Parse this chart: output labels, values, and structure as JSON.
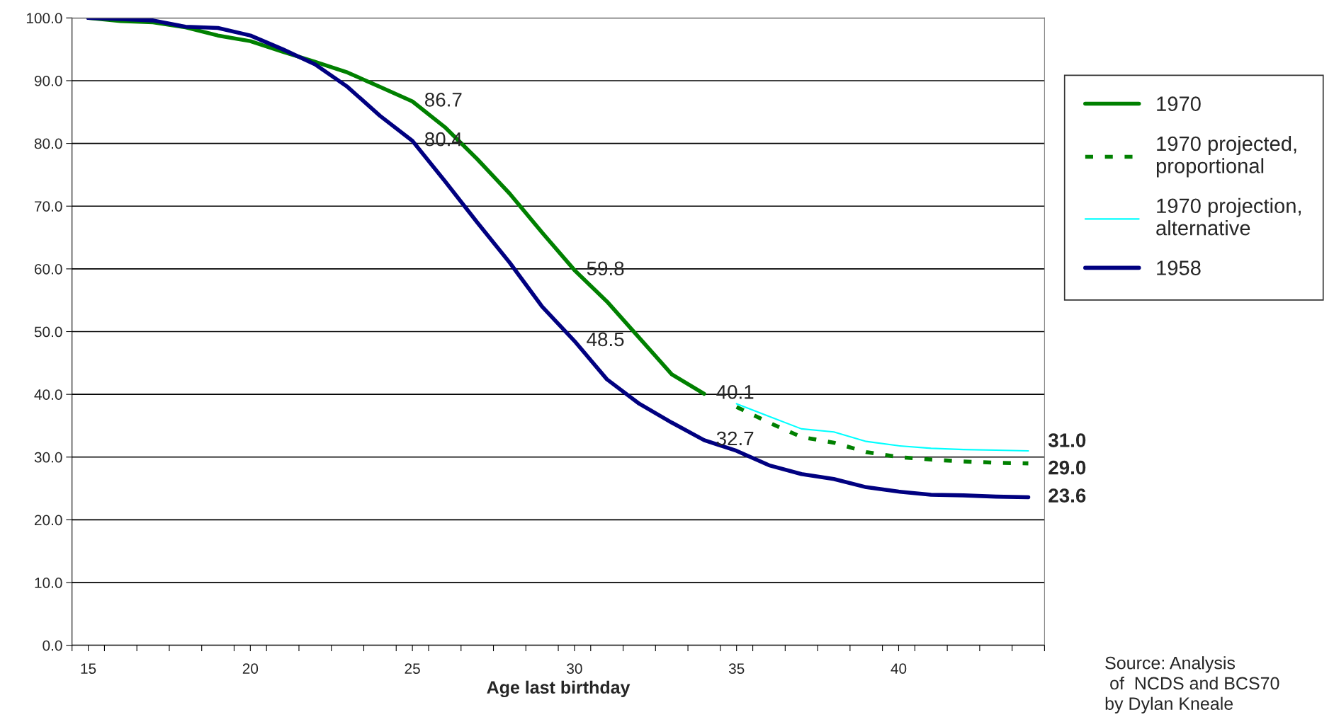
{
  "chart_data": {
    "type": "line",
    "xlabel": "Age last birthday",
    "xlim": [
      14.5,
      44.5
    ],
    "xticks": [
      {
        "value": 14.5,
        "label": null
      },
      {
        "value": 15.5,
        "label": null
      },
      {
        "value": 16.5,
        "label": null
      },
      {
        "value": 17.5,
        "label": null
      },
      {
        "value": 18.5,
        "label": null
      },
      {
        "value": 19.5,
        "label": null
      },
      {
        "value": 20.5,
        "label": null
      },
      {
        "value": 21.5,
        "label": null
      },
      {
        "value": 22.5,
        "label": null
      },
      {
        "value": 23.5,
        "label": null
      },
      {
        "value": 24.5,
        "label": null
      },
      {
        "value": 25.5,
        "label": null
      },
      {
        "value": 26.5,
        "label": null
      },
      {
        "value": 27.5,
        "label": null
      },
      {
        "value": 28.5,
        "label": null
      },
      {
        "value": 29.5,
        "label": null
      },
      {
        "value": 30.5,
        "label": null
      },
      {
        "value": 31.5,
        "label": null
      },
      {
        "value": 32.5,
        "label": null
      },
      {
        "value": 33.5,
        "label": null
      },
      {
        "value": 34.5,
        "label": null
      },
      {
        "value": 35.5,
        "label": null
      },
      {
        "value": 36.5,
        "label": null
      },
      {
        "value": 37.5,
        "label": null
      },
      {
        "value": 38.5,
        "label": null
      },
      {
        "value": 39.5,
        "label": null
      },
      {
        "value": 40.5,
        "label": null
      },
      {
        "value": 41.5,
        "label": null
      },
      {
        "value": 42.5,
        "label": null
      },
      {
        "value": 43.5,
        "label": null
      },
      {
        "value": 44.5,
        "label": null
      },
      15,
      20,
      25,
      30,
      35,
      40
    ],
    "ylim": [
      0,
      100
    ],
    "yticks": [
      {
        "value": 0,
        "label": "0.0"
      },
      {
        "value": 10,
        "label": "10.0"
      },
      {
        "value": 20,
        "label": "20.0"
      },
      {
        "value": 30,
        "label": "30.0"
      },
      {
        "value": 40,
        "label": "40.0"
      },
      {
        "value": 50,
        "label": "50.0"
      },
      {
        "value": 60,
        "label": "60.0"
      },
      {
        "value": 70,
        "label": "70.0"
      },
      {
        "value": 80,
        "label": "80.0"
      },
      {
        "value": 90,
        "label": "90.0"
      },
      {
        "value": 100,
        "label": "100.0"
      }
    ],
    "grid": "y",
    "legend": "right",
    "series": [
      {
        "name": "1970",
        "color": "#008000",
        "line_style": "solid",
        "x": [
          15,
          16,
          17,
          18,
          19,
          20,
          21,
          22,
          23,
          24,
          25,
          26,
          27,
          28,
          29,
          30,
          31,
          32,
          33,
          34
        ],
        "values": [
          100,
          99.5,
          99.3,
          98.5,
          97.2,
          96.3,
          94.6,
          93,
          91.3,
          89,
          86.7,
          82.6,
          77.5,
          72,
          65.8,
          59.8,
          54.8,
          49,
          43.2,
          40.1
        ],
        "value_labels": [
          null,
          null,
          null,
          null,
          null,
          null,
          null,
          null,
          null,
          null,
          "86.7",
          null,
          null,
          null,
          null,
          "59.8",
          null,
          null,
          null,
          "40.1"
        ]
      },
      {
        "name": "1970 projected, proportional",
        "color": "#008000",
        "line_style": "dashed",
        "x": [
          35,
          36,
          37,
          38,
          39,
          40,
          41,
          42,
          43,
          44
        ],
        "values": [
          38,
          35.5,
          33.2,
          32.3,
          30.8,
          30,
          29.6,
          29.3,
          29.1,
          29.0
        ],
        "value_labels": [
          null,
          null,
          null,
          null,
          null,
          null,
          null,
          null,
          null,
          "29.0"
        ]
      },
      {
        "name": "1970 projection, alternative",
        "color": "#00ffff",
        "line_style": "solid",
        "x": [
          35,
          36,
          37,
          38,
          39,
          40,
          41,
          42,
          43,
          44
        ],
        "values": [
          38.5,
          36.5,
          34.5,
          34,
          32.5,
          31.8,
          31.4,
          31.2,
          31.1,
          31.0
        ],
        "value_labels": [
          null,
          null,
          null,
          null,
          null,
          null,
          null,
          null,
          null,
          "31.0"
        ]
      },
      {
        "name": "1958",
        "color": "#000080",
        "line_style": "solid",
        "x": [
          15,
          16,
          17,
          18,
          19,
          20,
          21,
          22,
          23,
          24,
          25,
          26,
          27,
          28,
          29,
          30,
          31,
          32,
          33,
          34,
          35,
          36,
          37,
          38,
          39,
          40,
          41,
          42,
          43,
          44
        ],
        "values": [
          100,
          99.8,
          99.6,
          98.6,
          98.4,
          97.2,
          95,
          92.6,
          89,
          84.4,
          80.4,
          74,
          67.4,
          61,
          54,
          48.5,
          42.4,
          38.5,
          35.5,
          32.7,
          31,
          28.7,
          27.3,
          26.5,
          25.2,
          24.5,
          24,
          23.9,
          23.7,
          23.6
        ],
        "value_labels": [
          null,
          null,
          null,
          null,
          null,
          null,
          null,
          null,
          null,
          null,
          "80.4",
          null,
          null,
          null,
          null,
          "48.5",
          null,
          null,
          null,
          "32.7",
          null,
          null,
          null,
          null,
          null,
          null,
          null,
          null,
          null,
          "23.6"
        ]
      }
    ],
    "annotations": [
      "Source: Analysis\n of  NCDS and BCS70\nby Dylan Kneale"
    ]
  }
}
